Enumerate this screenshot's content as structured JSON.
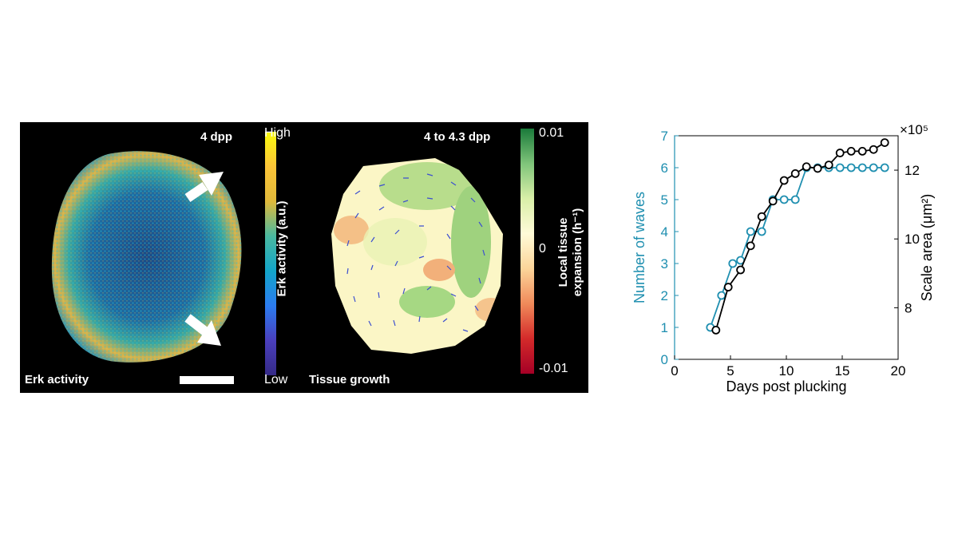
{
  "panel_left": {
    "timepoint": "4 dpp",
    "corner_label": "Erk activity",
    "colorbar_title": "Erk activity (a.u.)",
    "colorbar_high": "High",
    "colorbar_low": "Low"
  },
  "panel_middle": {
    "timepoint": "4 to 4.3 dpp",
    "corner_label": "Tissue growth",
    "colorbar_title_line1": "Local tissue",
    "colorbar_title_line2": "expansion (h⁻¹)",
    "colorbar_top": "0.01",
    "colorbar_mid": "0",
    "colorbar_bottom": "-0.01"
  },
  "chart_data": {
    "type": "line",
    "xlabel": "Days post plucking",
    "xlim": [
      0,
      20
    ],
    "xticks": [
      "0",
      "5",
      "10",
      "15",
      "20"
    ],
    "left_axis": {
      "label": "Number of waves",
      "color": "#1f8fb0",
      "ylim": [
        0,
        7
      ],
      "ticks": [
        "0",
        "1",
        "2",
        "3",
        "4",
        "5",
        "6",
        "7"
      ]
    },
    "right_axis": {
      "label": "Scale area (μm²)",
      "multiplier": "×10⁵",
      "color": "#000000",
      "ylim": [
        6.5,
        13
      ],
      "ticks": [
        "8",
        "10",
        "12"
      ]
    },
    "series": [
      {
        "axis": "left",
        "color": "#1f8fb0",
        "x": [
          3.2,
          4.2,
          5.2,
          5.9,
          6.8,
          7.8,
          8.8,
          9.8,
          10.8,
          11.8,
          12.8,
          13.8,
          14.8,
          15.8,
          16.8,
          17.8,
          18.8
        ],
        "y": [
          1,
          2,
          3,
          3.1,
          4,
          4,
          5,
          5,
          5,
          6,
          6,
          6,
          6,
          6,
          6,
          6,
          6
        ]
      },
      {
        "axis": "right",
        "color": "#000000",
        "x": [
          3.7,
          4.8,
          5.9,
          6.8,
          7.8,
          8.8,
          9.8,
          10.8,
          11.8,
          12.8,
          13.8,
          14.8,
          15.8,
          16.8,
          17.8,
          18.8
        ],
        "y": [
          7.35,
          8.6,
          9.1,
          9.8,
          10.65,
          11.1,
          11.7,
          11.9,
          12.1,
          12.05,
          12.15,
          12.5,
          12.55,
          12.55,
          12.6,
          12.8
        ]
      }
    ]
  }
}
